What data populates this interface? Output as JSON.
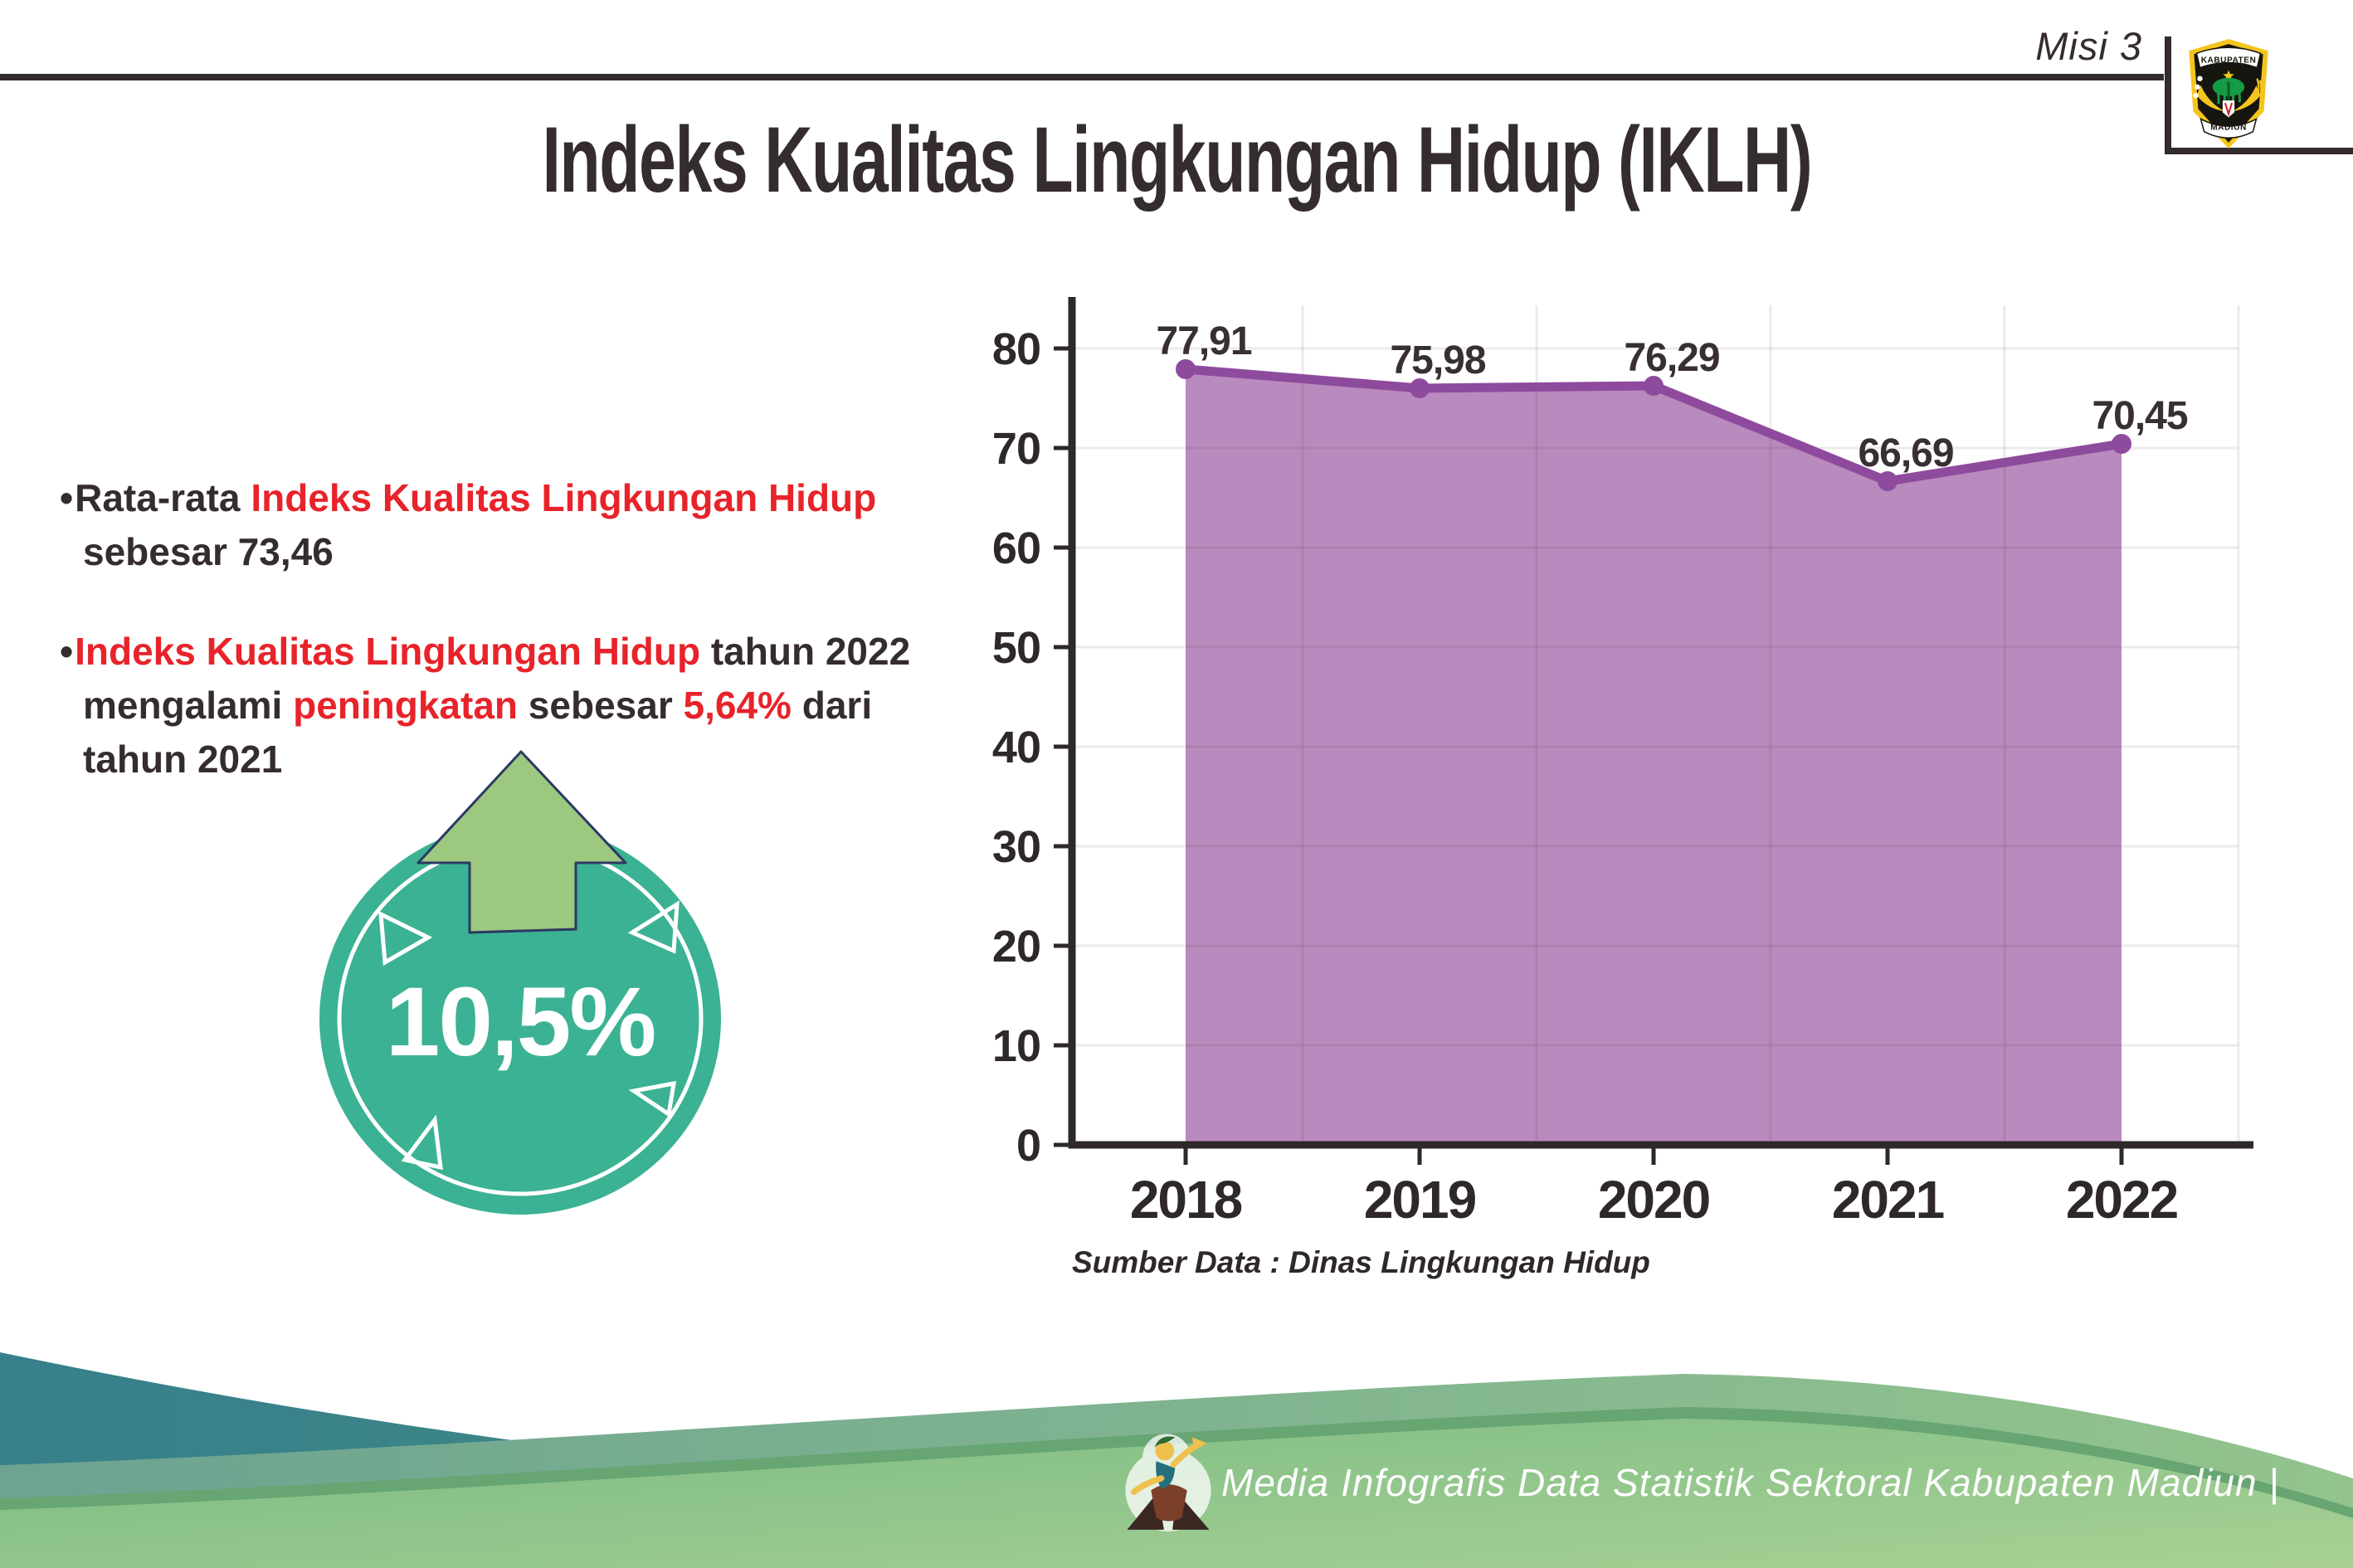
{
  "page": {
    "misi": "Misi 3",
    "title": "Indeks Kualitas Lingkungan Hidup (IKLH)"
  },
  "logo": {
    "top": "KABUPATEN",
    "bottom": "MADIUN"
  },
  "bullets": [
    {
      "segments": [
        {
          "text": "Rata-rata ",
          "color": "dark"
        },
        {
          "text": "Indeks Kualitas Lingkungan Hidup",
          "color": "red"
        },
        {
          "text": " sebesar 73,46",
          "color": "dark"
        }
      ]
    },
    {
      "segments": [
        {
          "text": "Indeks Kualitas Lingkungan Hidup",
          "color": "red"
        },
        {
          "text": " tahun 2022 mengalami ",
          "color": "dark"
        },
        {
          "text": "peningkatan",
          "color": "red"
        },
        {
          "text": " sebesar ",
          "color": "dark"
        },
        {
          "text": "5,64%",
          "color": "red"
        },
        {
          "text": " dari tahun 2021",
          "color": "dark"
        }
      ]
    }
  ],
  "badge": {
    "value": "10,5%",
    "circle_color": "#3BB293",
    "arrow_color": "#9DC87F"
  },
  "chart_data": {
    "type": "area",
    "title": "Indeks Kualitas Lingkungan Hidup (IKLH)",
    "categories": [
      "2018",
      "2019",
      "2020",
      "2021",
      "2022"
    ],
    "values": [
      77.91,
      75.98,
      76.29,
      66.69,
      70.45
    ],
    "value_labels": [
      "77,91",
      "75,98",
      "76,29",
      "66,69",
      "70,45"
    ],
    "xlabel": "",
    "ylabel": "",
    "ylim": [
      0,
      80
    ],
    "ytick_step": 10,
    "grid": true,
    "legend": false,
    "source": "Sumber Data : Dinas Lingkungan Hidup",
    "colors": {
      "line": "#8E4B9D",
      "fill": "#B98ABD",
      "axis": "#2E282A",
      "label": "#382F31"
    }
  },
  "footer": {
    "text": "Media Infografis Data Statistik Sektoral Kabupaten Madiun |"
  }
}
